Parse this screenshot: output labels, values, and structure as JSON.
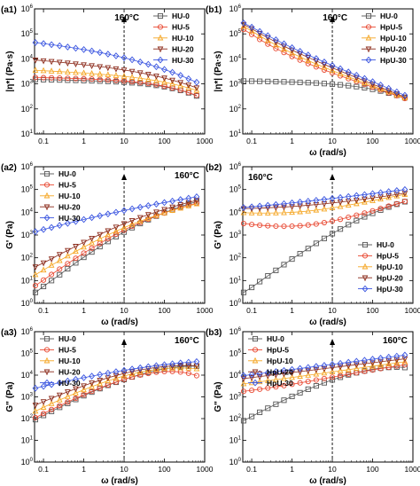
{
  "colors": {
    "HU-0": "#555555",
    "HpU-5": "#e8462f",
    "HU-5": "#e8462f",
    "HU-10": "#f5a623",
    "HpU-10": "#f5a623",
    "HU-20": "#8b2a1a",
    "HpU-20": "#8b2a1a",
    "HU-30": "#3a55e0",
    "HpU-30": "#3a55e0"
  },
  "markers": {
    "HU-0": "square",
    "HU-5": "circle",
    "HU-10": "triangle",
    "HU-20": "triangle-down",
    "HU-30": "diamond",
    "HpU-5": "circle",
    "HpU-10": "triangle",
    "HpU-20": "triangle-down",
    "HpU-30": "diamond"
  },
  "chart_data": [
    {
      "id": "a1",
      "panel_label": "(a1)",
      "type": "scatter",
      "ylabel": "|η*| (Pa·s)",
      "xlabel": "",
      "xscale": "log",
      "yscale": "log",
      "xlim": [
        0.06,
        1000
      ],
      "ylim_exp": [
        1,
        6
      ],
      "x_ticks": [
        "0.1",
        "1",
        "10",
        "100",
        "1000"
      ],
      "annotation": "160°C",
      "legend_position": "top-right",
      "x": [
        0.063,
        0.1,
        0.158,
        0.251,
        0.398,
        0.631,
        1,
        1.58,
        2.51,
        3.98,
        6.31,
        10,
        15.8,
        25.1,
        39.8,
        63.1,
        100,
        158,
        251,
        398,
        631
      ],
      "series": [
        {
          "name": "HU-0",
          "values": [
            1500,
            1480,
            1460,
            1440,
            1410,
            1390,
            1360,
            1330,
            1300,
            1260,
            1220,
            1170,
            1110,
            1040,
            960,
            870,
            770,
            660,
            550,
            440,
            330
          ]
        },
        {
          "name": "HU-5",
          "values": [
            1800,
            1770,
            1740,
            1710,
            1680,
            1640,
            1600,
            1550,
            1500,
            1440,
            1380,
            1310,
            1230,
            1140,
            1040,
            930,
            810,
            690,
            570,
            450,
            350
          ]
        },
        {
          "name": "HU-10",
          "values": [
            3500,
            3370,
            3240,
            3110,
            2980,
            2850,
            2720,
            2580,
            2440,
            2300,
            2150,
            2000,
            1840,
            1680,
            1510,
            1340,
            1170,
            1000,
            840,
            690,
            550
          ]
        },
        {
          "name": "HU-20",
          "values": [
            9000,
            8450,
            7900,
            7360,
            6840,
            6340,
            5850,
            5370,
            4910,
            4460,
            4020,
            3600,
            3190,
            2790,
            2410,
            2050,
            1720,
            1410,
            1140,
            900,
            700
          ]
        },
        {
          "name": "HU-30",
          "values": [
            45000,
            40900,
            37100,
            33400,
            29900,
            26700,
            23600,
            20700,
            18000,
            15500,
            13200,
            11100,
            9200,
            7550,
            6100,
            4850,
            3780,
            2900,
            2180,
            1600,
            1160
          ]
        }
      ]
    },
    {
      "id": "b1",
      "panel_label": "(b1)",
      "type": "scatter",
      "ylabel": "|η*| (Pa·s)",
      "xlabel": "ω (rad/s)",
      "xscale": "log",
      "yscale": "log",
      "xlim": [
        0.06,
        1000
      ],
      "ylim_exp": [
        1,
        6
      ],
      "x_ticks": [
        "0.1",
        "1",
        "10",
        "100",
        "1000"
      ],
      "annotation": "160°C",
      "legend_position": "top-right",
      "x": [
        0.063,
        0.1,
        0.158,
        0.251,
        0.398,
        0.631,
        1,
        1.58,
        2.51,
        3.98,
        6.31,
        10,
        15.8,
        25.1,
        39.8,
        63.1,
        100,
        158,
        251,
        398,
        631
      ],
      "series": [
        {
          "name": "HU-0",
          "values": [
            1300,
            1290,
            1270,
            1250,
            1230,
            1210,
            1180,
            1150,
            1120,
            1080,
            1030,
            980,
            920,
            850,
            780,
            700,
            610,
            520,
            430,
            350,
            280
          ]
        },
        {
          "name": "HpU-5",
          "values": [
            150000,
            95000,
            60000,
            39000,
            26000,
            18000,
            12500,
            9000,
            6500,
            4800,
            3600,
            2750,
            2100,
            1620,
            1250,
            960,
            740,
            570,
            440,
            340,
            260
          ]
        },
        {
          "name": "HpU-10",
          "values": [
            200000,
            130000,
            83000,
            54000,
            36000,
            24500,
            17000,
            12000,
            8600,
            6200,
            4600,
            3400,
            2550,
            1920,
            1450,
            1100,
            830,
            630,
            480,
            360,
            275
          ]
        },
        {
          "name": "HpU-20",
          "values": [
            240000,
            160000,
            105000,
            70000,
            47000,
            32000,
            22500,
            16000,
            11500,
            8300,
            6000,
            4400,
            3250,
            2400,
            1780,
            1320,
            980,
            730,
            540,
            400,
            300
          ]
        },
        {
          "name": "HpU-30",
          "values": [
            270000,
            185000,
            125000,
            85000,
            58000,
            40000,
            28000,
            20000,
            14300,
            10300,
            7500,
            5500,
            4050,
            3000,
            2220,
            1650,
            1220,
            900,
            660,
            480,
            350
          ]
        }
      ]
    },
    {
      "id": "a2",
      "panel_label": "(a2)",
      "type": "scatter",
      "ylabel": "G' (Pa)",
      "xlabel": "ω (rad/s)",
      "xscale": "log",
      "yscale": "log",
      "xlim": [
        0.06,
        1000
      ],
      "ylim_exp": [
        0,
        6
      ],
      "x_ticks": [
        "0.1",
        "1",
        "10",
        "100",
        "1000"
      ],
      "annotation": "160°C",
      "legend_position": "top-left",
      "x": [
        0.063,
        0.1,
        0.158,
        0.251,
        0.398,
        0.631,
        1,
        1.58,
        2.51,
        3.98,
        6.31,
        10,
        15.8,
        25.1,
        39.8,
        63.1,
        100,
        158,
        251,
        398,
        631
      ],
      "series": [
        {
          "name": "HU-0",
          "values": [
            3,
            5.5,
            10,
            18,
            33,
            60,
            105,
            180,
            310,
            520,
            850,
            1350,
            2100,
            3200,
            4700,
            6800,
            9600,
            13000,
            17500,
            23000,
            29000
          ]
        },
        {
          "name": "HU-5",
          "values": [
            6,
            10.5,
            18.5,
            32,
            55,
            95,
            160,
            265,
            430,
            690,
            1080,
            1650,
            2450,
            3550,
            5000,
            6900,
            9300,
            12200,
            15800,
            20000,
            25000
          ]
        },
        {
          "name": "HU-10",
          "values": [
            18,
            29,
            47,
            75,
            120,
            190,
            295,
            450,
            680,
            1010,
            1470,
            2100,
            2950,
            4050,
            5450,
            7200,
            9400,
            12000,
            15200,
            19000,
            23500
          ]
        },
        {
          "name": "HU-20",
          "values": [
            40,
            60,
            90,
            140,
            210,
            320,
            480,
            720,
            1060,
            1550,
            2230,
            3150,
            4350,
            5900,
            7900,
            10300,
            13300,
            17000,
            21500,
            27000,
            33500
          ]
        },
        {
          "name": "HU-30",
          "values": [
            1400,
            1750,
            2150,
            2650,
            3250,
            3950,
            4800,
            5800,
            7000,
            8400,
            10000,
            11900,
            14100,
            16600,
            19500,
            22800,
            26600,
            31000,
            36000,
            41500,
            48000
          ]
        }
      ]
    },
    {
      "id": "b2",
      "panel_label": "(b2)",
      "type": "scatter",
      "ylabel": "G' (Pa)",
      "xlabel": "ω (rad/s)",
      "xscale": "log",
      "yscale": "log",
      "xlim": [
        0.06,
        1000
      ],
      "ylim_exp": [
        0,
        6
      ],
      "x_ticks": [
        "0.1",
        "1",
        "10",
        "100",
        "1000"
      ],
      "annotation": "160°C",
      "legend_position": "bottom-right",
      "x": [
        0.063,
        0.1,
        0.158,
        0.251,
        0.398,
        0.631,
        1,
        1.58,
        2.51,
        3.98,
        6.31,
        10,
        15.8,
        25.1,
        39.8,
        63.1,
        100,
        158,
        251,
        398,
        631
      ],
      "series": [
        {
          "name": "HU-0",
          "values": [
            3,
            5,
            9,
            16,
            28,
            50,
            88,
            150,
            255,
            430,
            710,
            1150,
            1830,
            2850,
            4300,
            6300,
            9000,
            12500,
            17000,
            22500,
            29000
          ]
        },
        {
          "name": "HpU-5",
          "values": [
            3200,
            2900,
            2700,
            2550,
            2450,
            2420,
            2450,
            2550,
            2750,
            3050,
            3500,
            4100,
            4900,
            6000,
            7400,
            9200,
            11500,
            14500,
            18500,
            23500,
            30000
          ]
        },
        {
          "name": "HpU-10",
          "values": [
            9500,
            9300,
            9200,
            9200,
            9300,
            9500,
            9900,
            10500,
            11300,
            12400,
            13800,
            15600,
            17800,
            20500,
            23800,
            27800,
            32500,
            38000,
            44500,
            52000,
            61000
          ]
        },
        {
          "name": "HpU-20",
          "values": [
            14500,
            14800,
            15200,
            15700,
            16300,
            17000,
            17900,
            19000,
            20300,
            21800,
            23600,
            25700,
            28100,
            30900,
            34200,
            38000,
            42400,
            47500,
            53500,
            60500,
            68500
          ]
        },
        {
          "name": "HpU-30",
          "values": [
            16000,
            17200,
            18600,
            20100,
            21800,
            23700,
            25800,
            28100,
            30700,
            33600,
            36800,
            40400,
            44400,
            48900,
            53900,
            59500,
            65800,
            72800,
            80600,
            89300,
            99000
          ]
        }
      ]
    },
    {
      "id": "a3",
      "panel_label": "(a3)",
      "type": "scatter",
      "ylabel": "G\" (Pa)",
      "xlabel": "ω (rad/s)",
      "xscale": "log",
      "yscale": "log",
      "xlim": [
        0.06,
        1000
      ],
      "ylim_exp": [
        0,
        6
      ],
      "x_ticks": [
        "0.1",
        "1",
        "10",
        "100",
        "1000"
      ],
      "annotation": "160°C",
      "legend_position": "top-left",
      "x": [
        0.063,
        0.1,
        0.158,
        0.251,
        0.398,
        0.631,
        1,
        1.58,
        2.51,
        3.98,
        6.31,
        10,
        15.8,
        25.1,
        39.8,
        63.1,
        100,
        158,
        251,
        398,
        631
      ],
      "series": [
        {
          "name": "HU-0",
          "values": [
            90,
            140,
            215,
            330,
            500,
            760,
            1130,
            1660,
            2400,
            3400,
            4700,
            6300,
            8300,
            10700,
            13400,
            16300,
            19300,
            22200,
            24600,
            26000,
            26000
          ]
        },
        {
          "name": "HU-5",
          "values": [
            110,
            170,
            260,
            390,
            580,
            860,
            1250,
            1800,
            2550,
            3550,
            4850,
            6400,
            8200,
            10100,
            12000,
            13600,
            14600,
            14800,
            14000,
            12200,
            9500
          ]
        },
        {
          "name": "HU-10",
          "values": [
            220,
            330,
            490,
            720,
            1040,
            1490,
            2110,
            2950,
            4050,
            5450,
            7150,
            9150,
            11400,
            13800,
            16200,
            18400,
            20200,
            21300,
            21600,
            21000,
            19500
          ]
        },
        {
          "name": "HU-20",
          "values": [
            420,
            600,
            860,
            1220,
            1710,
            2370,
            3240,
            4370,
            5790,
            7530,
            9590,
            11950,
            14550,
            17300,
            20050,
            22650,
            24900,
            26600,
            27600,
            27700,
            26900
          ]
        },
        {
          "name": "HU-30",
          "values": [
            2500,
            3050,
            3700,
            4450,
            5350,
            6400,
            7600,
            9000,
            10600,
            12400,
            14400,
            16600,
            19000,
            21600,
            24400,
            27300,
            30300,
            33300,
            36300,
            39200,
            42000
          ]
        }
      ]
    },
    {
      "id": "b3",
      "panel_label": "(b3)",
      "type": "scatter",
      "ylabel": "G\" (Pa)",
      "xlabel": "ω (rad/s)",
      "xscale": "log",
      "yscale": "log",
      "xlim": [
        0.06,
        1000
      ],
      "ylim_exp": [
        0,
        6
      ],
      "x_ticks": [
        "0.1",
        "1",
        "10",
        "100",
        "1000"
      ],
      "annotation": "160°C",
      "legend_position": "top-left",
      "x": [
        0.063,
        0.1,
        0.158,
        0.251,
        0.398,
        0.631,
        1,
        1.58,
        2.51,
        3.98,
        6.31,
        10,
        15.8,
        25.1,
        39.8,
        63.1,
        100,
        158,
        251,
        398,
        631
      ],
      "series": [
        {
          "name": "HU-0",
          "values": [
            80,
            125,
            195,
            300,
            460,
            700,
            1050,
            1550,
            2250,
            3200,
            4450,
            6050,
            8000,
            10300,
            12900,
            15700,
            18500,
            21000,
            22800,
            23500,
            22500
          ]
        },
        {
          "name": "HpU-5",
          "values": [
            1800,
            2000,
            2250,
            2550,
            2900,
            3300,
            3800,
            4400,
            5100,
            5950,
            6950,
            8100,
            9450,
            11000,
            12800,
            14900,
            17300,
            20000,
            23000,
            26300,
            30000
          ]
        },
        {
          "name": "HpU-10",
          "values": [
            4000,
            4450,
            4950,
            5550,
            6200,
            6950,
            7800,
            8750,
            9850,
            11100,
            12500,
            14100,
            15900,
            17900,
            20200,
            22800,
            25700,
            29000,
            32700,
            36800,
            41500
          ]
        },
        {
          "name": "HpU-20",
          "values": [
            7000,
            7750,
            8600,
            9550,
            10600,
            11800,
            13100,
            14550,
            16150,
            17950,
            19950,
            22150,
            24600,
            27300,
            30300,
            33600,
            37300,
            41400,
            45900,
            50900,
            56500
          ]
        },
        {
          "name": "HpU-30",
          "values": [
            9500,
            10600,
            11800,
            13100,
            14600,
            16300,
            18200,
            20300,
            22600,
            25200,
            28100,
            31300,
            34900,
            38900,
            43400,
            48400,
            54000,
            60200,
            67100,
            74800,
            83400
          ]
        }
      ]
    }
  ]
}
